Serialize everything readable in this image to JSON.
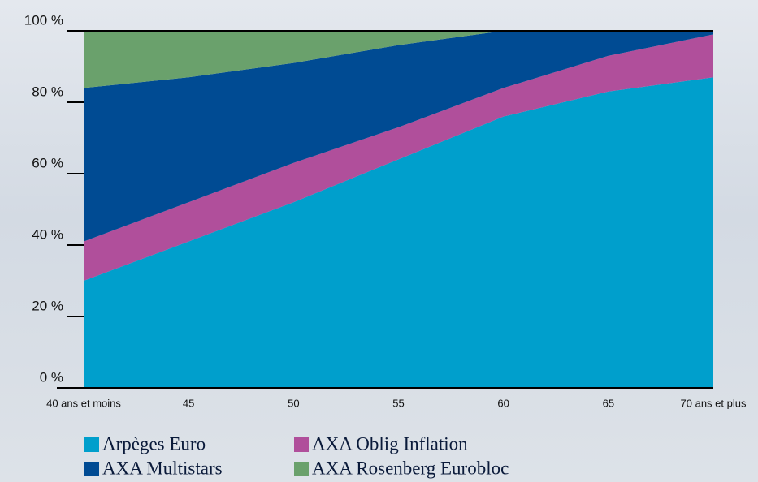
{
  "chart_data": {
    "type": "stacked_area",
    "categories": [
      "40 ans et moins",
      "45",
      "50",
      "55",
      "60",
      "65",
      "70 ans et plus"
    ],
    "series": [
      {
        "name": "Arpèges Euro",
        "color": "#009fcc",
        "values": [
          30,
          41,
          52,
          64,
          76,
          83,
          87
        ]
      },
      {
        "name": "AXA Oblig Inflation",
        "color": "#b04f9b",
        "values": [
          11,
          11,
          11,
          9,
          8,
          10,
          12
        ]
      },
      {
        "name": "AXA Multistars",
        "color": "#004b93",
        "values": [
          43,
          35,
          28,
          23,
          16,
          7,
          1
        ]
      },
      {
        "name": "AXA Rosenberg Eurobloc",
        "color": "#6aa16c",
        "values": [
          16,
          13,
          9,
          4,
          0,
          0,
          0
        ]
      }
    ],
    "ylim": [
      0,
      100
    ],
    "yticks": [
      {
        "value": 0,
        "label": "0 %"
      },
      {
        "value": 20,
        "label": "20 %"
      },
      {
        "value": 40,
        "label": "40 %"
      },
      {
        "value": 60,
        "label": "60 %"
      },
      {
        "value": 80,
        "label": "80 %"
      },
      {
        "value": 100,
        "label": "100 %"
      }
    ]
  }
}
